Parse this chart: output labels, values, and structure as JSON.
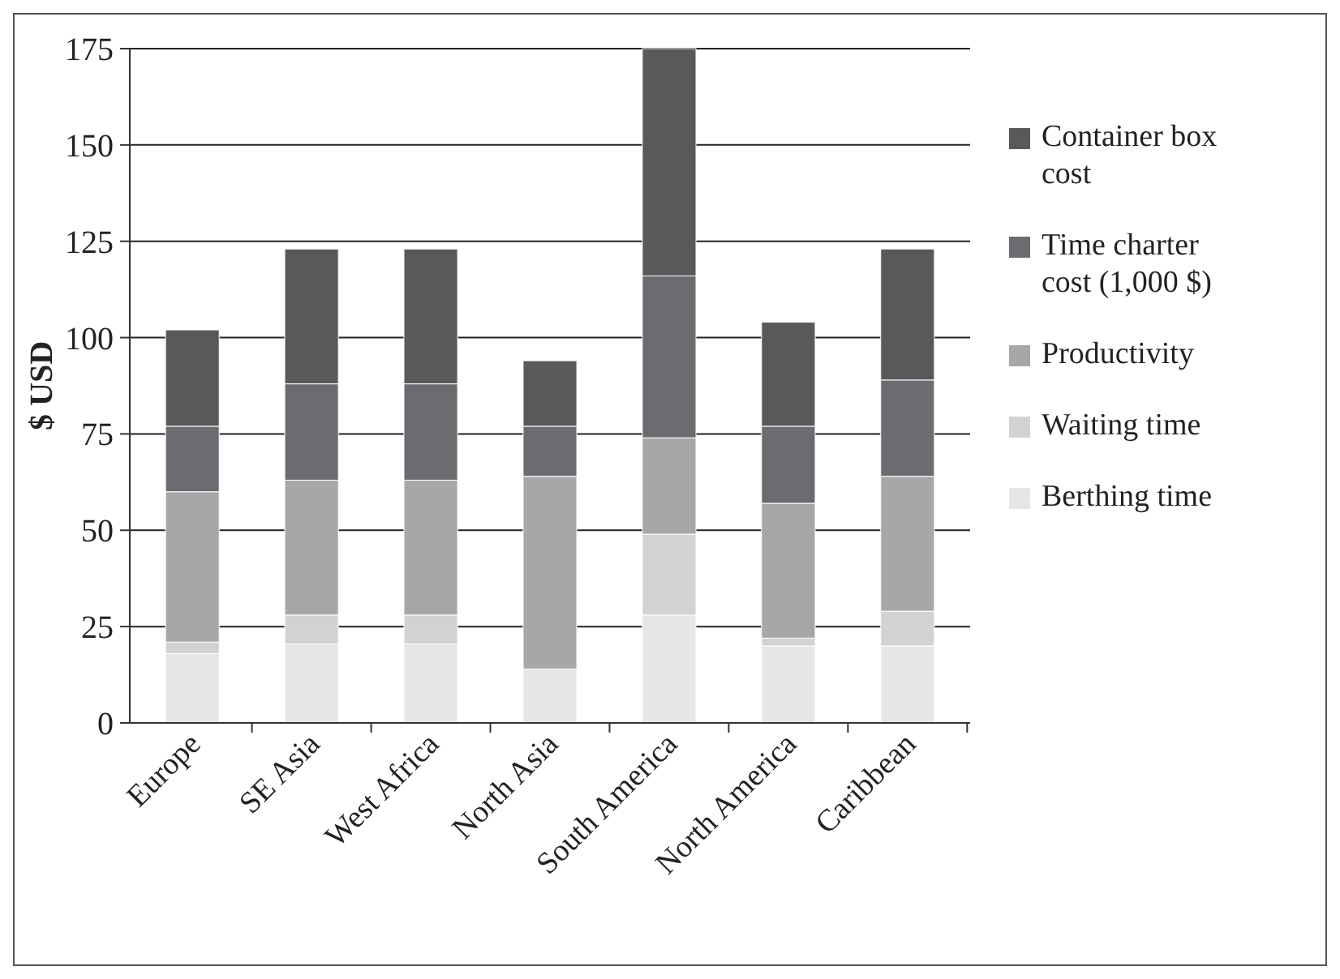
{
  "chart_data": {
    "type": "bar",
    "stacked": true,
    "ylabel": "$ USD",
    "categories": [
      "Europe",
      "SE Asia",
      "West Africa",
      "North Asia",
      "South America",
      "North America",
      "Caribbean"
    ],
    "series": [
      {
        "name": "Berthing time",
        "color": "#e6e6e7",
        "values": [
          18,
          20.5,
          20.5,
          14,
          28,
          20,
          20
        ]
      },
      {
        "name": "Waiting time",
        "color": "#d1d2d3",
        "values": [
          3,
          7.5,
          7.5,
          0,
          21,
          2,
          9
        ]
      },
      {
        "name": "Productivity",
        "color": "#a6a7a9",
        "values": [
          39,
          35,
          35,
          50,
          25,
          35,
          35
        ]
      },
      {
        "name": "Time charter cost (1,000 $)",
        "color": "#6b6c6f",
        "values": [
          17,
          25,
          25,
          13,
          42,
          20,
          25
        ]
      },
      {
        "name": "Container box cost",
        "color": "#58595b",
        "values": [
          25,
          35,
          35,
          17,
          59,
          27,
          34
        ]
      }
    ],
    "ylim": [
      0,
      175
    ],
    "yticks": [
      0,
      25,
      50,
      75,
      100,
      125,
      150,
      175
    ],
    "grid": "y",
    "legend": "right"
  }
}
